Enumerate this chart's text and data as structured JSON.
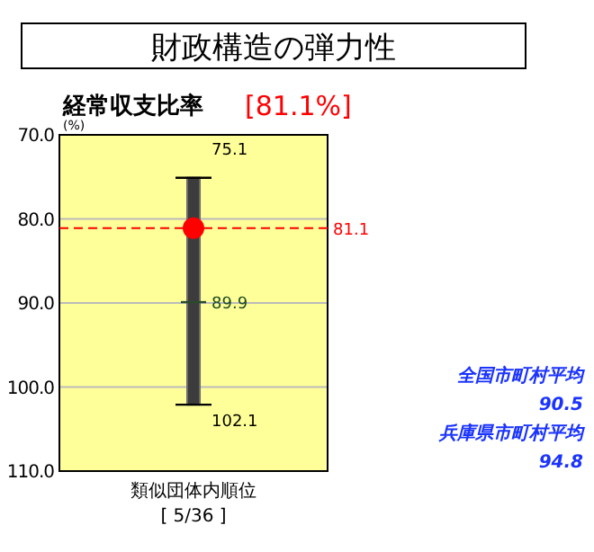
{
  "chart_data": {
    "type": "bar",
    "title": "財政構造の弾力性",
    "subtitle": "経常収支比率",
    "ylabel": "(%)",
    "categories": [
      "類似団体内順位"
    ],
    "values": [
      27.0
    ],
    "base": [
      75.1
    ],
    "color": "#3c3c3c",
    "series": [
      {
        "type": "scatter",
        "color": "#ff0000",
        "x": [
          "類似団体内順位"
        ],
        "values": [
          81.1
        ],
        "marker": "circle"
      }
    ],
    "ylim": [
      110,
      70
    ],
    "yticks": [
      {
        "value": 70,
        "label": "70.0"
      },
      {
        "value": 80,
        "label": "80.0"
      },
      {
        "value": 90,
        "label": "90.0"
      },
      {
        "value": 100,
        "label": "100.0"
      },
      {
        "value": 110,
        "label": "110.0"
      }
    ],
    "grid": "y",
    "ref_lines": [
      {
        "axis": "y",
        "value": 81.1,
        "label": "81.1",
        "color": "#ff0000",
        "line_style": "dashed"
      }
    ],
    "annotations": [
      "[81.1%]",
      "[ 5/36 ]",
      "全国市町村平均",
      "90.5",
      "兵庫県市町村平均",
      "94.8",
      {
        "text": "75.1",
        "x": "類似団体内順位",
        "y": 75.1
      },
      {
        "text": "89.9",
        "x": "類似団体内順位",
        "y": 89.9
      },
      {
        "text": "102.1",
        "x": "類似団体内順位",
        "y": 102.1
      }
    ]
  }
}
